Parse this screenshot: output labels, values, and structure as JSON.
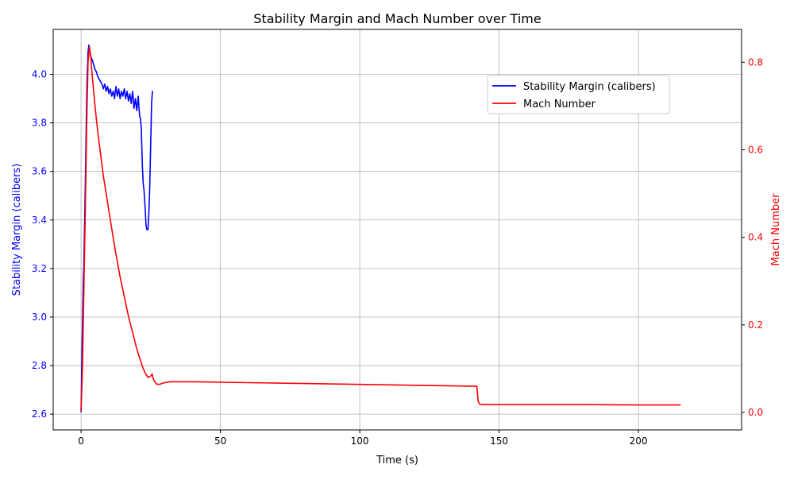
{
  "chart_data": {
    "type": "line",
    "title": "Stability Margin and Mach Number over Time",
    "xlabel": "Time (s)",
    "ylabel_left": "Stability Margin (calibers)",
    "ylabel_right": "Mach Number",
    "xlim": [
      -10,
      237
    ],
    "ylim_left": [
      2.535,
      4.185
    ],
    "ylim_right": [
      -0.04,
      0.875
    ],
    "x_ticks": [
      0,
      50,
      100,
      150,
      200
    ],
    "y_ticks_left": [
      2.6,
      2.8,
      3.0,
      3.2,
      3.4,
      3.6,
      3.8,
      4.0
    ],
    "y_ticks_left_labels": [
      "2.6",
      "2.8",
      "3.0",
      "3.2",
      "3.4",
      "3.6",
      "3.8",
      "4.0"
    ],
    "y_ticks_right": [
      0.0,
      0.2,
      0.4,
      0.6,
      0.8
    ],
    "y_ticks_right_labels": [
      "0.0",
      "0.2",
      "0.4",
      "0.6",
      "0.8"
    ],
    "grid": true,
    "legend_position": "upper-right",
    "colors": {
      "left_axis": "#0000ff",
      "right_axis": "#ff0000",
      "grid": "#b0b0b0"
    },
    "series": [
      {
        "name": "Stability Margin (calibers)",
        "axis": "left",
        "color": "#0000ff",
        "x": [
          0.0,
          0.4,
          0.8,
          1.0,
          1.3,
          1.6,
          1.9,
          2.2,
          2.5,
          2.8,
          3.0,
          3.3,
          3.6,
          4.0,
          4.5,
          5.0,
          5.5,
          6.0,
          6.5,
          7.0,
          7.5,
          8.0,
          8.5,
          9.0,
          9.5,
          10.0,
          10.5,
          11.0,
          11.5,
          12.0,
          12.5,
          13.0,
          13.5,
          14.0,
          14.5,
          15.0,
          15.5,
          16.0,
          16.5,
          17.0,
          17.5,
          18.0,
          18.5,
          19.0,
          19.5,
          20.0,
          20.5,
          21.0,
          21.3,
          21.6,
          22.0,
          22.3,
          22.6,
          23.0,
          23.3,
          23.6,
          24.0,
          24.3,
          24.6,
          25.0,
          25.3,
          25.6
        ],
        "y": [
          2.61,
          2.9,
          3.15,
          3.21,
          3.4,
          3.6,
          3.82,
          4.0,
          4.09,
          4.12,
          4.11,
          4.08,
          4.07,
          4.06,
          4.04,
          4.02,
          4.01,
          3.99,
          3.98,
          3.97,
          3.96,
          3.94,
          3.96,
          3.93,
          3.95,
          3.92,
          3.94,
          3.91,
          3.93,
          3.9,
          3.95,
          3.91,
          3.94,
          3.9,
          3.93,
          3.91,
          3.94,
          3.9,
          3.93,
          3.89,
          3.92,
          3.88,
          3.93,
          3.86,
          3.9,
          3.85,
          3.91,
          3.83,
          3.82,
          3.78,
          3.62,
          3.55,
          3.52,
          3.45,
          3.38,
          3.36,
          3.36,
          3.42,
          3.52,
          3.72,
          3.88,
          3.93
        ]
      },
      {
        "name": "Mach Number",
        "axis": "right",
        "color": "#ff0000",
        "x": [
          0.0,
          0.5,
          1.0,
          1.5,
          2.0,
          2.5,
          3.0,
          3.5,
          4.0,
          5.0,
          6.0,
          7.0,
          8.0,
          9.0,
          10.0,
          11.0,
          12.0,
          13.0,
          14.0,
          15.0,
          16.0,
          17.0,
          18.0,
          19.0,
          20.0,
          21.0,
          22.0,
          23.0,
          24.0,
          25.0,
          25.5,
          26.0,
          27.0,
          28.0,
          30.0,
          32.0,
          35.0,
          40.0,
          60.0,
          80.0,
          100.0,
          120.0,
          140.0,
          142.0,
          142.5,
          143.0,
          144.0,
          150.0,
          180.0,
          200.0,
          215.0
        ],
        "y": [
          0.005,
          0.1,
          0.28,
          0.45,
          0.65,
          0.8,
          0.835,
          0.81,
          0.77,
          0.7,
          0.64,
          0.59,
          0.54,
          0.5,
          0.46,
          0.42,
          0.38,
          0.345,
          0.31,
          0.28,
          0.25,
          0.22,
          0.195,
          0.17,
          0.145,
          0.125,
          0.105,
          0.09,
          0.08,
          0.083,
          0.088,
          0.075,
          0.065,
          0.064,
          0.068,
          0.07,
          0.07,
          0.07,
          0.068,
          0.066,
          0.064,
          0.062,
          0.06,
          0.06,
          0.025,
          0.019,
          0.018,
          0.018,
          0.018,
          0.017,
          0.017
        ]
      }
    ]
  }
}
